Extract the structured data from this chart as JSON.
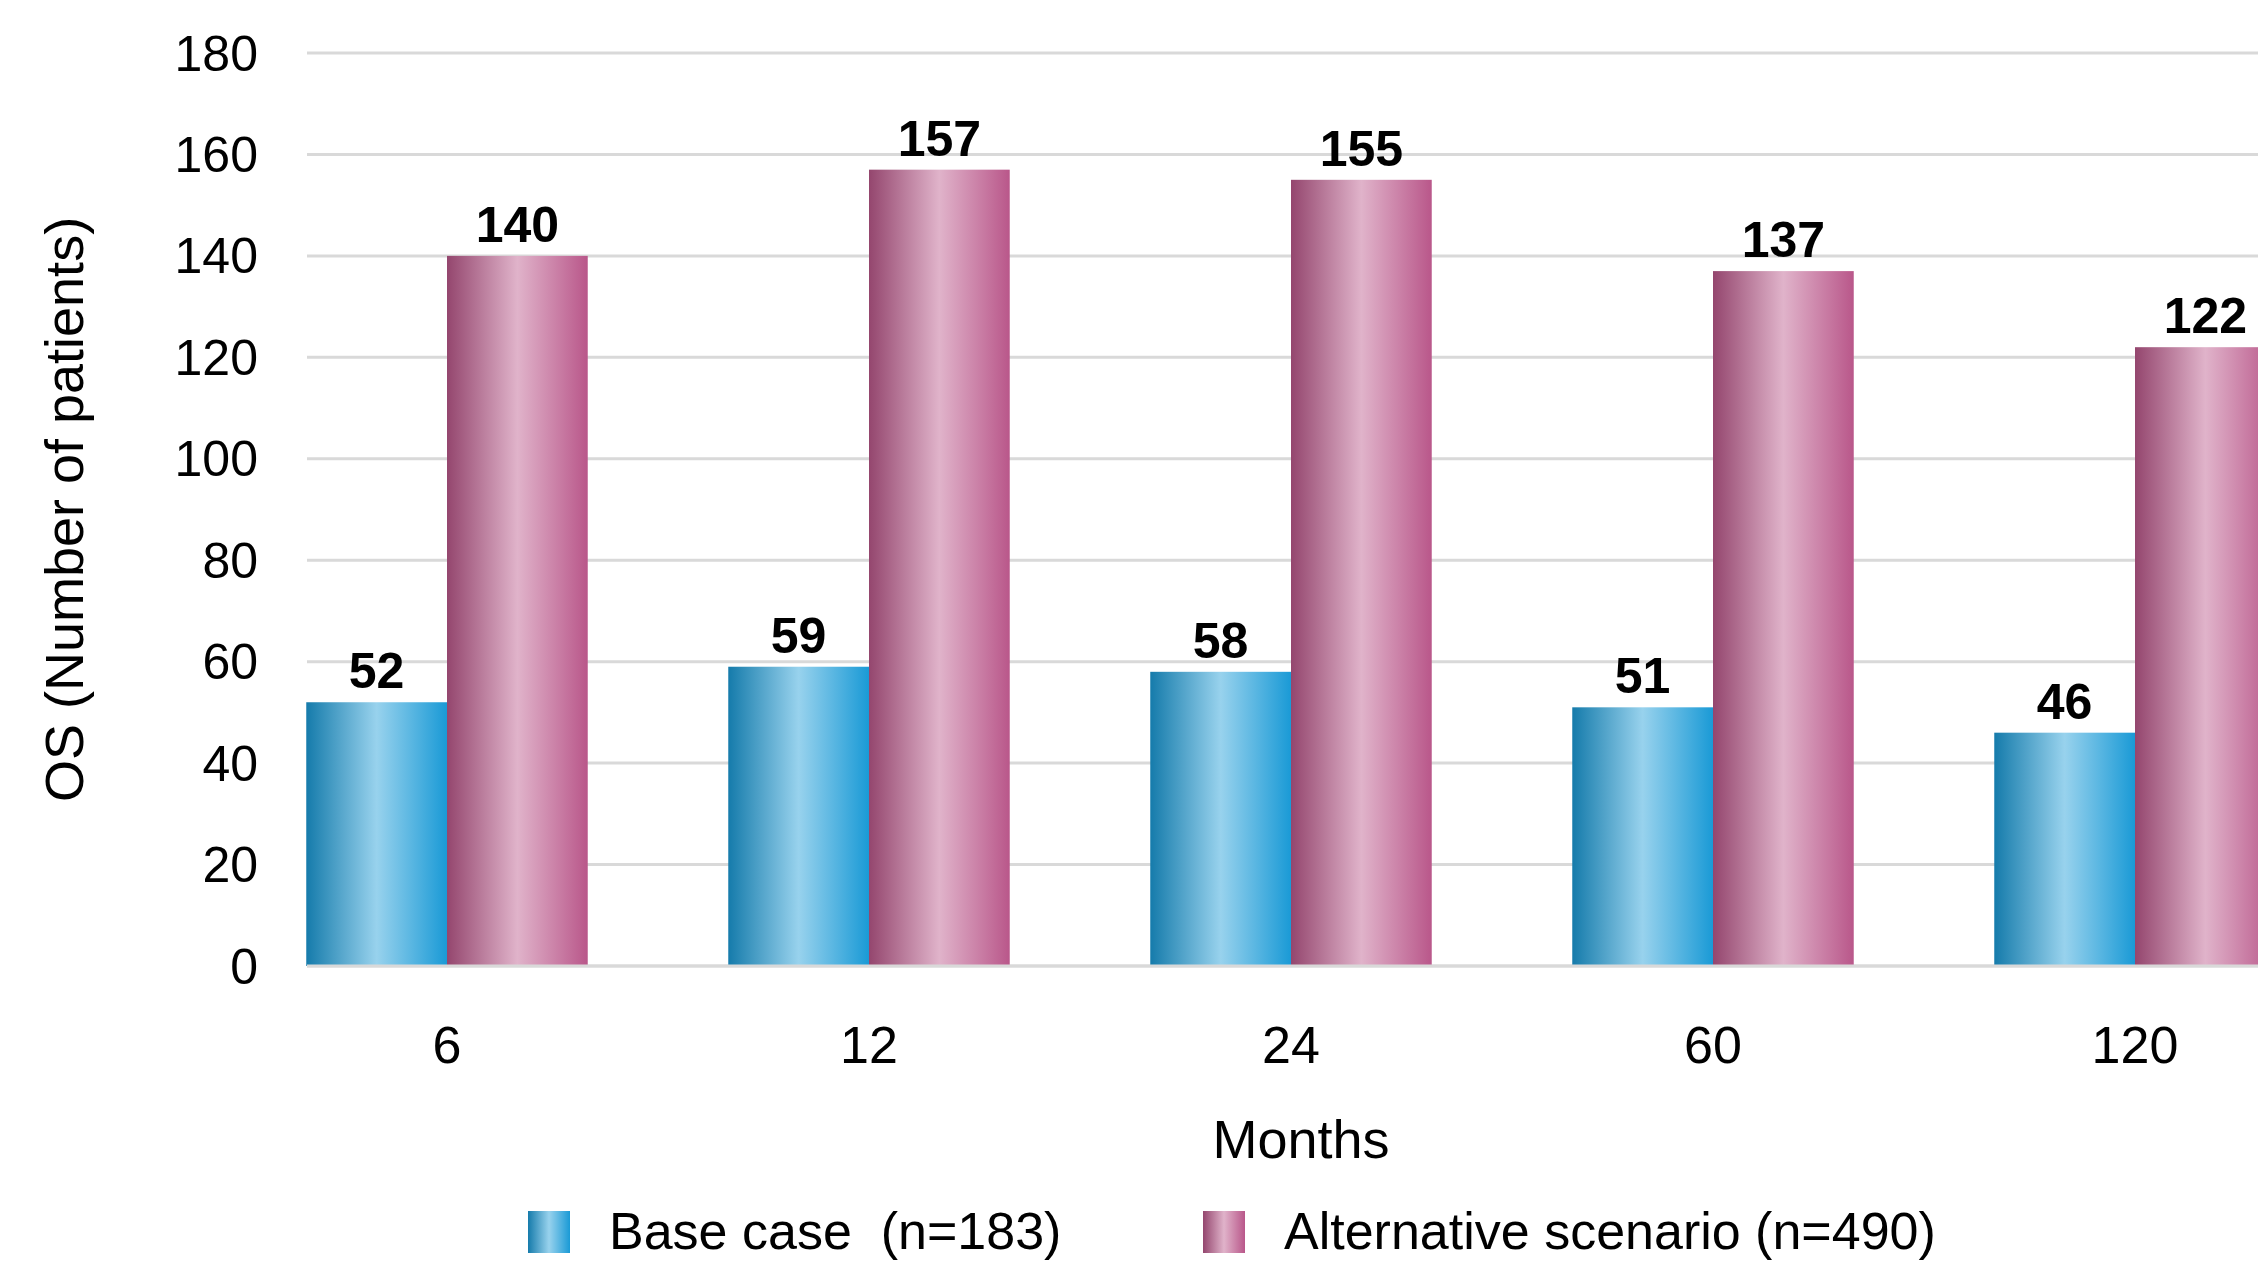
{
  "chart_data": {
    "type": "bar",
    "xlabel": "Months",
    "ylabel": "OS (Number of patients)",
    "categories": [
      "6",
      "12",
      "24",
      "60",
      "120"
    ],
    "series": [
      {
        "name": "Base case  (n=183)",
        "color": "#1a9ad6",
        "values": [
          52,
          59,
          58,
          51,
          46
        ]
      },
      {
        "name": "Alternative scenario (n=490)",
        "color": "#b9578a",
        "values": [
          140,
          157,
          155,
          137,
          122
        ]
      }
    ],
    "ylim": [
      0,
      180
    ],
    "yticks": [
      0,
      20,
      40,
      60,
      80,
      100,
      120,
      140,
      160,
      180
    ],
    "grid": "y",
    "legend": "bottom",
    "data_labels": true
  }
}
